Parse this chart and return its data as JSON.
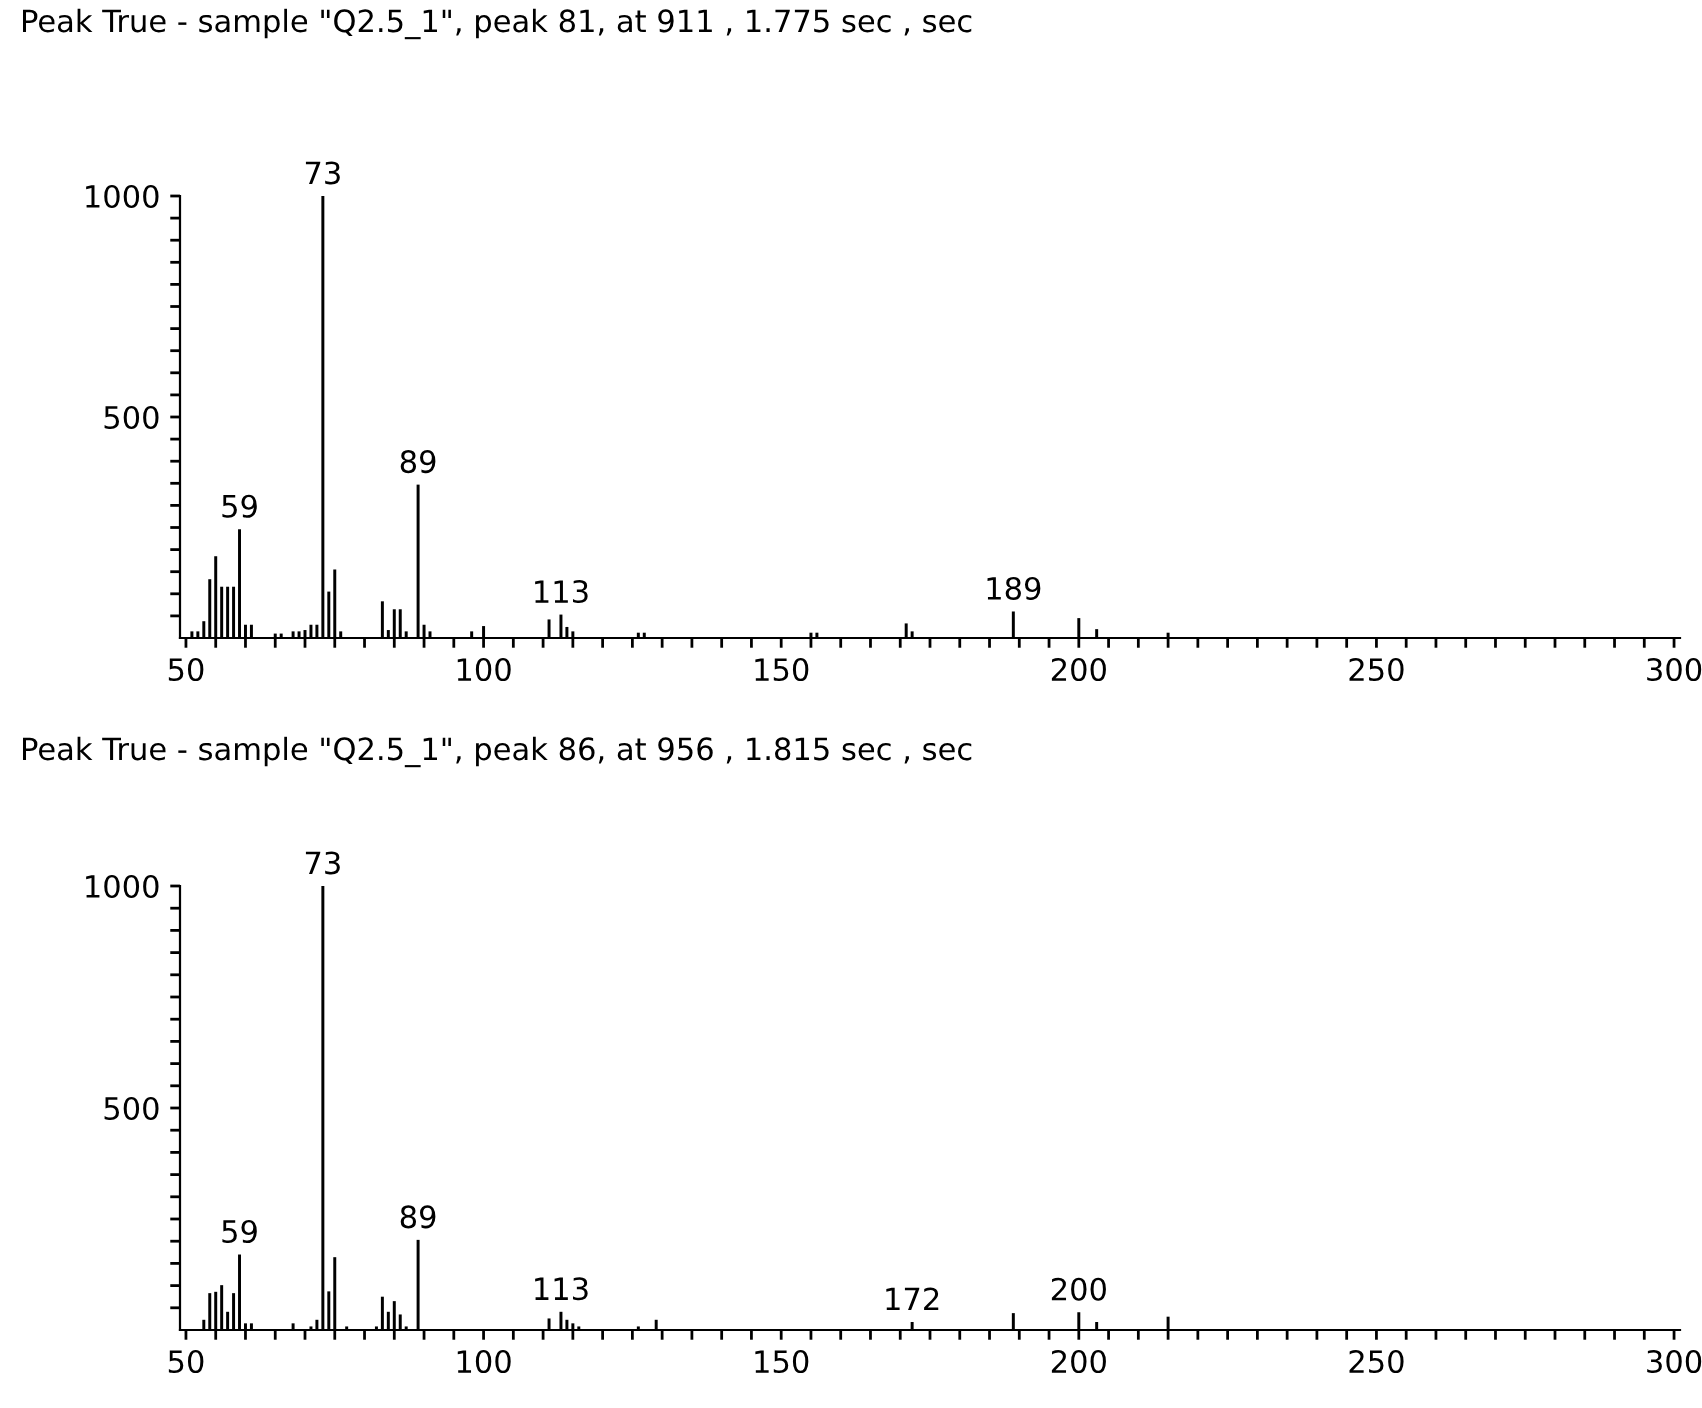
{
  "chart_data": [
    {
      "type": "bar",
      "title": "Peak True - sample \"Q2.5_1\", peak 81, at 911 , 1.775 sec , sec",
      "x": [
        51,
        52,
        53,
        54,
        55,
        56,
        57,
        58,
        59,
        60,
        61,
        65,
        66,
        68,
        69,
        70,
        71,
        72,
        73,
        74,
        75,
        76,
        83,
        84,
        85,
        86,
        87,
        89,
        90,
        91,
        98,
        100,
        111,
        113,
        114,
        115,
        126,
        127,
        155,
        156,
        171,
        172,
        189,
        200,
        203,
        215
      ],
      "values": [
        15,
        15,
        38,
        133,
        185,
        116,
        116,
        116,
        246,
        30,
        30,
        10,
        10,
        15,
        15,
        18,
        30,
        30,
        1000,
        105,
        155,
        15,
        83,
        18,
        65,
        65,
        15,
        347,
        30,
        15,
        15,
        27,
        42,
        53,
        25,
        15,
        12,
        12,
        12,
        12,
        33,
        15,
        60,
        45,
        20,
        12
      ],
      "color": "#000000",
      "xlim": [
        49,
        301
      ],
      "xticks": [
        50,
        {
          "value": 55,
          "label": null
        },
        {
          "value": 60,
          "label": null
        },
        {
          "value": 65,
          "label": null
        },
        {
          "value": 70,
          "label": null
        },
        {
          "value": 75,
          "label": null
        },
        {
          "value": 80,
          "label": null
        },
        {
          "value": 85,
          "label": null
        },
        {
          "value": 90,
          "label": null
        },
        {
          "value": 95,
          "label": null
        },
        100,
        {
          "value": 105,
          "label": null
        },
        {
          "value": 110,
          "label": null
        },
        {
          "value": 115,
          "label": null
        },
        {
          "value": 120,
          "label": null
        },
        {
          "value": 125,
          "label": null
        },
        {
          "value": 130,
          "label": null
        },
        {
          "value": 135,
          "label": null
        },
        {
          "value": 140,
          "label": null
        },
        {
          "value": 145,
          "label": null
        },
        150,
        {
          "value": 155,
          "label": null
        },
        {
          "value": 160,
          "label": null
        },
        {
          "value": 165,
          "label": null
        },
        {
          "value": 170,
          "label": null
        },
        {
          "value": 175,
          "label": null
        },
        {
          "value": 180,
          "label": null
        },
        {
          "value": 185,
          "label": null
        },
        {
          "value": 190,
          "label": null
        },
        {
          "value": 195,
          "label": null
        },
        200,
        {
          "value": 205,
          "label": null
        },
        {
          "value": 210,
          "label": null
        },
        {
          "value": 215,
          "label": null
        },
        {
          "value": 220,
          "label": null
        },
        {
          "value": 225,
          "label": null
        },
        {
          "value": 230,
          "label": null
        },
        {
          "value": 235,
          "label": null
        },
        {
          "value": 240,
          "label": null
        },
        {
          "value": 245,
          "label": null
        },
        250,
        {
          "value": 255,
          "label": null
        },
        {
          "value": 260,
          "label": null
        },
        {
          "value": 265,
          "label": null
        },
        {
          "value": 270,
          "label": null
        },
        {
          "value": 275,
          "label": null
        },
        {
          "value": 280,
          "label": null
        },
        {
          "value": 285,
          "label": null
        },
        {
          "value": 290,
          "label": null
        },
        {
          "value": 295,
          "label": null
        },
        300
      ],
      "ylim": [
        0,
        1000
      ],
      "yticks": [
        {
          "value": 50,
          "label": null
        },
        {
          "value": 100,
          "label": null
        },
        {
          "value": 150,
          "label": null
        },
        {
          "value": 200,
          "label": null
        },
        {
          "value": 250,
          "label": null
        },
        {
          "value": 300,
          "label": null
        },
        {
          "value": 350,
          "label": null
        },
        {
          "value": 400,
          "label": null
        },
        {
          "value": 450,
          "label": null
        },
        500,
        {
          "value": 550,
          "label": null
        },
        {
          "value": 600,
          "label": null
        },
        {
          "value": 650,
          "label": null
        },
        {
          "value": 700,
          "label": null
        },
        {
          "value": 750,
          "label": null
        },
        {
          "value": 800,
          "label": null
        },
        {
          "value": 850,
          "label": null
        },
        {
          "value": 900,
          "label": null
        },
        {
          "value": 950,
          "label": null
        },
        1000
      ],
      "annotations": [
        {
          "text": "73",
          "x": 73,
          "y": 1000
        },
        {
          "text": "59",
          "x": 59,
          "y": 246
        },
        {
          "text": "89",
          "x": 89,
          "y": 347
        },
        {
          "text": "113",
          "x": 113,
          "y": 53
        },
        {
          "text": "189",
          "x": 189,
          "y": 60
        }
      ]
    },
    {
      "type": "bar",
      "title": "Peak True - sample \"Q2.5_1\", peak 86, at 956 , 1.815 sec , sec",
      "x": [
        53,
        54,
        55,
        56,
        57,
        58,
        59,
        60,
        61,
        68,
        71,
        72,
        73,
        74,
        75,
        77,
        82,
        83,
        84,
        85,
        86,
        87,
        89,
        111,
        113,
        114,
        115,
        116,
        126,
        129,
        172,
        189,
        200,
        203,
        215
      ],
      "values": [
        23,
        83,
        86,
        101,
        41,
        83,
        170,
        15,
        15,
        15,
        8,
        23,
        1000,
        87,
        164,
        8,
        8,
        75,
        41,
        65,
        35,
        8,
        203,
        26,
        41,
        23,
        15,
        8,
        8,
        23,
        18,
        38,
        40,
        18,
        30
      ],
      "color": "#000000",
      "xlim": [
        49,
        301
      ],
      "xticks": [
        50,
        {
          "value": 55,
          "label": null
        },
        {
          "value": 60,
          "label": null
        },
        {
          "value": 65,
          "label": null
        },
        {
          "value": 70,
          "label": null
        },
        {
          "value": 75,
          "label": null
        },
        {
          "value": 80,
          "label": null
        },
        {
          "value": 85,
          "label": null
        },
        {
          "value": 90,
          "label": null
        },
        {
          "value": 95,
          "label": null
        },
        100,
        {
          "value": 105,
          "label": null
        },
        {
          "value": 110,
          "label": null
        },
        {
          "value": 115,
          "label": null
        },
        {
          "value": 120,
          "label": null
        },
        {
          "value": 125,
          "label": null
        },
        {
          "value": 130,
          "label": null
        },
        {
          "value": 135,
          "label": null
        },
        {
          "value": 140,
          "label": null
        },
        {
          "value": 145,
          "label": null
        },
        150,
        {
          "value": 155,
          "label": null
        },
        {
          "value": 160,
          "label": null
        },
        {
          "value": 165,
          "label": null
        },
        {
          "value": 170,
          "label": null
        },
        {
          "value": 175,
          "label": null
        },
        {
          "value": 180,
          "label": null
        },
        {
          "value": 185,
          "label": null
        },
        {
          "value": 190,
          "label": null
        },
        {
          "value": 195,
          "label": null
        },
        200,
        {
          "value": 205,
          "label": null
        },
        {
          "value": 210,
          "label": null
        },
        {
          "value": 215,
          "label": null
        },
        {
          "value": 220,
          "label": null
        },
        {
          "value": 225,
          "label": null
        },
        {
          "value": 230,
          "label": null
        },
        {
          "value": 235,
          "label": null
        },
        {
          "value": 240,
          "label": null
        },
        {
          "value": 245,
          "label": null
        },
        250,
        {
          "value": 255,
          "label": null
        },
        {
          "value": 260,
          "label": null
        },
        {
          "value": 265,
          "label": null
        },
        {
          "value": 270,
          "label": null
        },
        {
          "value": 275,
          "label": null
        },
        {
          "value": 280,
          "label": null
        },
        {
          "value": 285,
          "label": null
        },
        {
          "value": 290,
          "label": null
        },
        {
          "value": 295,
          "label": null
        },
        300
      ],
      "ylim": [
        0,
        1000
      ],
      "yticks": [
        {
          "value": 50,
          "label": null
        },
        {
          "value": 100,
          "label": null
        },
        {
          "value": 150,
          "label": null
        },
        {
          "value": 200,
          "label": null
        },
        {
          "value": 250,
          "label": null
        },
        {
          "value": 300,
          "label": null
        },
        {
          "value": 350,
          "label": null
        },
        {
          "value": 400,
          "label": null
        },
        {
          "value": 450,
          "label": null
        },
        500,
        {
          "value": 550,
          "label": null
        },
        {
          "value": 600,
          "label": null
        },
        {
          "value": 650,
          "label": null
        },
        {
          "value": 700,
          "label": null
        },
        {
          "value": 750,
          "label": null
        },
        {
          "value": 800,
          "label": null
        },
        {
          "value": 850,
          "label": null
        },
        {
          "value": 900,
          "label": null
        },
        {
          "value": 950,
          "label": null
        },
        1000
      ],
      "annotations": [
        {
          "text": "73",
          "x": 73,
          "y": 1000
        },
        {
          "text": "59",
          "x": 59,
          "y": 170
        },
        {
          "text": "89",
          "x": 89,
          "y": 203
        },
        {
          "text": "113",
          "x": 113,
          "y": 41
        },
        {
          "text": "172",
          "x": 172,
          "y": 18
        },
        {
          "text": "200",
          "x": 200,
          "y": 40
        }
      ]
    }
  ]
}
